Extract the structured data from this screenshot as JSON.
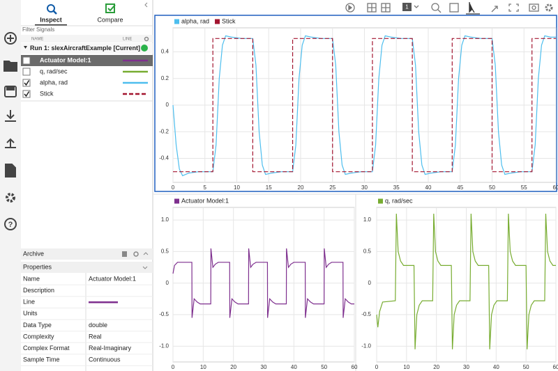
{
  "toolbar": {
    "layout_label": "1"
  },
  "tabs": [
    "Inspect",
    "Compare"
  ],
  "filter_label": "Filter Signals",
  "columns": [
    "NAME",
    "LINE"
  ],
  "run": "Run 1: slexAircraftExample [Current]",
  "signals": [
    {
      "name": "Actuator Model:1",
      "checked": false,
      "selected": true,
      "color": "#7e2f8e",
      "line_style": "solid"
    },
    {
      "name": "q, rad/sec",
      "checked": false,
      "selected": false,
      "color": "#77ac30",
      "line_style": "solid"
    },
    {
      "name": "alpha, rad",
      "checked": true,
      "selected": false,
      "color": "#4dbeee",
      "line_style": "solid"
    },
    {
      "name": "Stick",
      "checked": true,
      "selected": false,
      "color": "#a2142f",
      "line_style": "dashed"
    }
  ],
  "archive": "Archive",
  "properties": {
    "title": "Properties",
    "rows": [
      {
        "label": "Name",
        "value": "Actuator Model:1"
      },
      {
        "label": "Description"
      },
      {
        "label": "Line",
        "line_color": "#7e2f8e"
      },
      {
        "label": "Units"
      },
      {
        "label": "Data Type",
        "value": "double"
      },
      {
        "label": "Complexity",
        "value": "Real"
      },
      {
        "label": "Complex Format",
        "value": "Real-Imaginary"
      },
      {
        "label": "Sample Time",
        "value": "Continuous"
      }
    ]
  },
  "chart_data": [
    {
      "type": "line",
      "grid": true,
      "xlim": [
        0,
        60
      ],
      "xticks": [
        0,
        5,
        10,
        15,
        20,
        25,
        30,
        35,
        40,
        45,
        50,
        55,
        60
      ],
      "ylim": [
        -0.58,
        0.58
      ],
      "yticks": [
        0.4,
        0.2,
        0,
        -0.2,
        -0.4
      ],
      "series": [
        {
          "name": "alpha, rad",
          "color": "#4dbeee",
          "line_style": "solid",
          "x": [
            0,
            0.5,
            1,
            1.5,
            2.5,
            4,
            6.25,
            6.75,
            7.25,
            7.75,
            8.25,
            9.25,
            10.75,
            12.5,
            13,
            13.5,
            14,
            14.5,
            15.5,
            17,
            18.75,
            19.25,
            19.75,
            20.25,
            20.75,
            21.75,
            23.25,
            25,
            25.5,
            26,
            26.5,
            27,
            28,
            29.5,
            31.25,
            31.75,
            32.25,
            32.75,
            33.25,
            34.25,
            35.75,
            37.5,
            38,
            38.5,
            39,
            39.5,
            40.5,
            42,
            43.75,
            44.25,
            44.75,
            45.25,
            45.75,
            46.75,
            48.25,
            50,
            50.5,
            51,
            51.5,
            52,
            53,
            54.5,
            56.25,
            56.75,
            57.25,
            57.75,
            58.25,
            59.25,
            60
          ],
          "values": [
            0,
            -0.3,
            -0.48,
            -0.53,
            -0.51,
            -0.5,
            -0.5,
            -0.3,
            0.2,
            0.45,
            0.52,
            0.51,
            0.5,
            0.5,
            0.3,
            -0.2,
            -0.45,
            -0.52,
            -0.51,
            -0.5,
            -0.5,
            -0.3,
            0.2,
            0.45,
            0.52,
            0.51,
            0.5,
            0.5,
            0.3,
            -0.2,
            -0.45,
            -0.52,
            -0.51,
            -0.5,
            -0.5,
            -0.3,
            0.2,
            0.45,
            0.52,
            0.51,
            0.5,
            0.5,
            0.3,
            -0.2,
            -0.45,
            -0.52,
            -0.51,
            -0.5,
            -0.5,
            -0.3,
            0.2,
            0.45,
            0.52,
            0.51,
            0.5,
            0.5,
            0.3,
            -0.2,
            -0.45,
            -0.52,
            -0.51,
            -0.5,
            -0.5,
            -0.3,
            0.2,
            0.45,
            0.52,
            0.51,
            0.51
          ]
        },
        {
          "name": "Stick",
          "color": "#a2142f",
          "line_style": "dashed",
          "x": [
            0,
            6.25,
            6.25,
            12.5,
            12.5,
            18.75,
            18.75,
            25,
            25,
            31.25,
            31.25,
            37.5,
            37.5,
            43.75,
            43.75,
            50,
            50,
            56.25,
            56.25,
            60
          ],
          "values": [
            -0.5,
            -0.5,
            0.5,
            0.5,
            -0.5,
            -0.5,
            0.5,
            0.5,
            -0.5,
            -0.5,
            0.5,
            0.5,
            -0.5,
            -0.5,
            0.5,
            0.5,
            -0.5,
            -0.5,
            0.5,
            0.5
          ]
        }
      ]
    },
    {
      "type": "line",
      "grid": true,
      "xlim": [
        0,
        60
      ],
      "xticks": [
        0,
        10,
        20,
        30,
        40,
        50,
        60
      ],
      "ylim": [
        -1.25,
        1.2
      ],
      "yticks": [
        {
          "value": 1,
          "label": "1.0"
        },
        0.5,
        0,
        -0.5,
        {
          "value": -1,
          "label": "-1.0"
        }
      ],
      "series": [
        {
          "name": "Actuator Model:1",
          "color": "#7e2f8e",
          "line_style": "solid",
          "x": [
            0,
            0.5,
            1.5,
            6.25,
            6.3,
            7,
            8,
            9,
            12.5,
            12.55,
            13.2,
            14,
            15,
            18.75,
            18.8,
            19.5,
            20.5,
            21.5,
            25,
            25.05,
            25.7,
            26.5,
            27.5,
            31.25,
            31.3,
            32,
            33,
            34,
            37.5,
            37.55,
            38.2,
            39,
            40,
            43.75,
            43.8,
            44.5,
            45.5,
            46.5,
            50,
            50.05,
            50.7,
            51.5,
            52.5,
            56.25,
            56.3,
            57,
            58,
            59,
            60
          ],
          "values": [
            0.15,
            0.28,
            0.33,
            0.33,
            -0.55,
            -0.25,
            -0.3,
            -0.33,
            -0.33,
            0.55,
            0.25,
            0.3,
            0.33,
            0.33,
            -0.55,
            -0.25,
            -0.3,
            -0.33,
            -0.33,
            0.55,
            0.25,
            0.3,
            0.33,
            0.33,
            -0.55,
            -0.25,
            -0.3,
            -0.33,
            -0.33,
            0.55,
            0.25,
            0.3,
            0.33,
            0.33,
            -0.55,
            -0.25,
            -0.3,
            -0.33,
            -0.33,
            0.55,
            0.25,
            0.3,
            0.33,
            0.33,
            -0.55,
            -0.25,
            -0.3,
            -0.33,
            -0.33
          ]
        }
      ]
    },
    {
      "type": "line",
      "grid": true,
      "xlim": [
        0,
        60
      ],
      "xticks": [
        0,
        10,
        20,
        30,
        40,
        50,
        60
      ],
      "ylim": [
        -1.25,
        1.2
      ],
      "yticks": [
        {
          "value": 1,
          "label": "1.0"
        },
        0.5,
        0,
        -0.5,
        {
          "value": -1,
          "label": "-1.0"
        }
      ],
      "series": [
        {
          "name": "q, rad/sec",
          "color": "#77ac30",
          "line_style": "solid",
          "x": [
            0,
            0.4,
            1,
            2,
            6.25,
            6.6,
            7.2,
            8,
            9,
            12.5,
            12.85,
            13.45,
            14.25,
            15.25,
            18.75,
            19.1,
            19.7,
            20.5,
            21.5,
            25,
            25.35,
            25.95,
            26.75,
            27.75,
            31.25,
            31.6,
            32.2,
            33,
            34,
            37.5,
            37.85,
            38.45,
            39.25,
            40.25,
            43.75,
            44.1,
            44.7,
            45.5,
            46.5,
            50,
            50.35,
            50.95,
            51.75,
            52.75,
            56.25,
            56.6,
            57.2,
            58,
            59,
            60
          ],
          "values": [
            -0.5,
            -0.7,
            -0.45,
            -0.3,
            -0.28,
            1.1,
            0.5,
            0.35,
            0.28,
            0.28,
            -1.05,
            -0.5,
            -0.35,
            -0.28,
            -0.28,
            1.1,
            0.5,
            0.35,
            0.28,
            0.28,
            -1.05,
            -0.5,
            -0.35,
            -0.28,
            -0.28,
            1.1,
            0.5,
            0.35,
            0.28,
            0.28,
            -1.05,
            -0.5,
            -0.35,
            -0.28,
            -0.28,
            1.1,
            0.5,
            0.35,
            0.28,
            0.28,
            -1.05,
            -0.5,
            -0.35,
            -0.28,
            -0.28,
            1.1,
            0.5,
            0.35,
            0.28,
            0.28
          ]
        }
      ]
    }
  ]
}
